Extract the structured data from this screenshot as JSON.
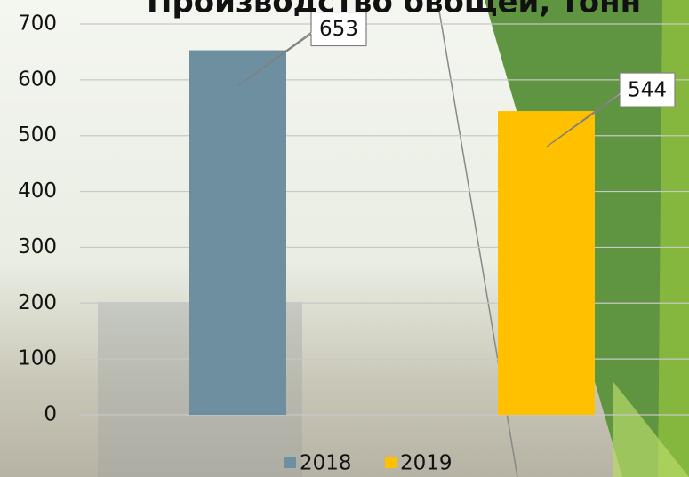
{
  "chart_data": {
    "type": "bar",
    "title": "Производство овощей, тонн",
    "categories": [
      null
    ],
    "series": [
      {
        "name": "2018",
        "color": "#6e8fa0",
        "values": [
          653
        ]
      },
      {
        "name": "2019",
        "color": "#ffc000",
        "values": [
          544
        ]
      }
    ],
    "ylim": [
      0,
      700
    ],
    "yticks": [
      0,
      100,
      200,
      300,
      400,
      500,
      600,
      700
    ],
    "grid": true,
    "legend": "bottom"
  }
}
